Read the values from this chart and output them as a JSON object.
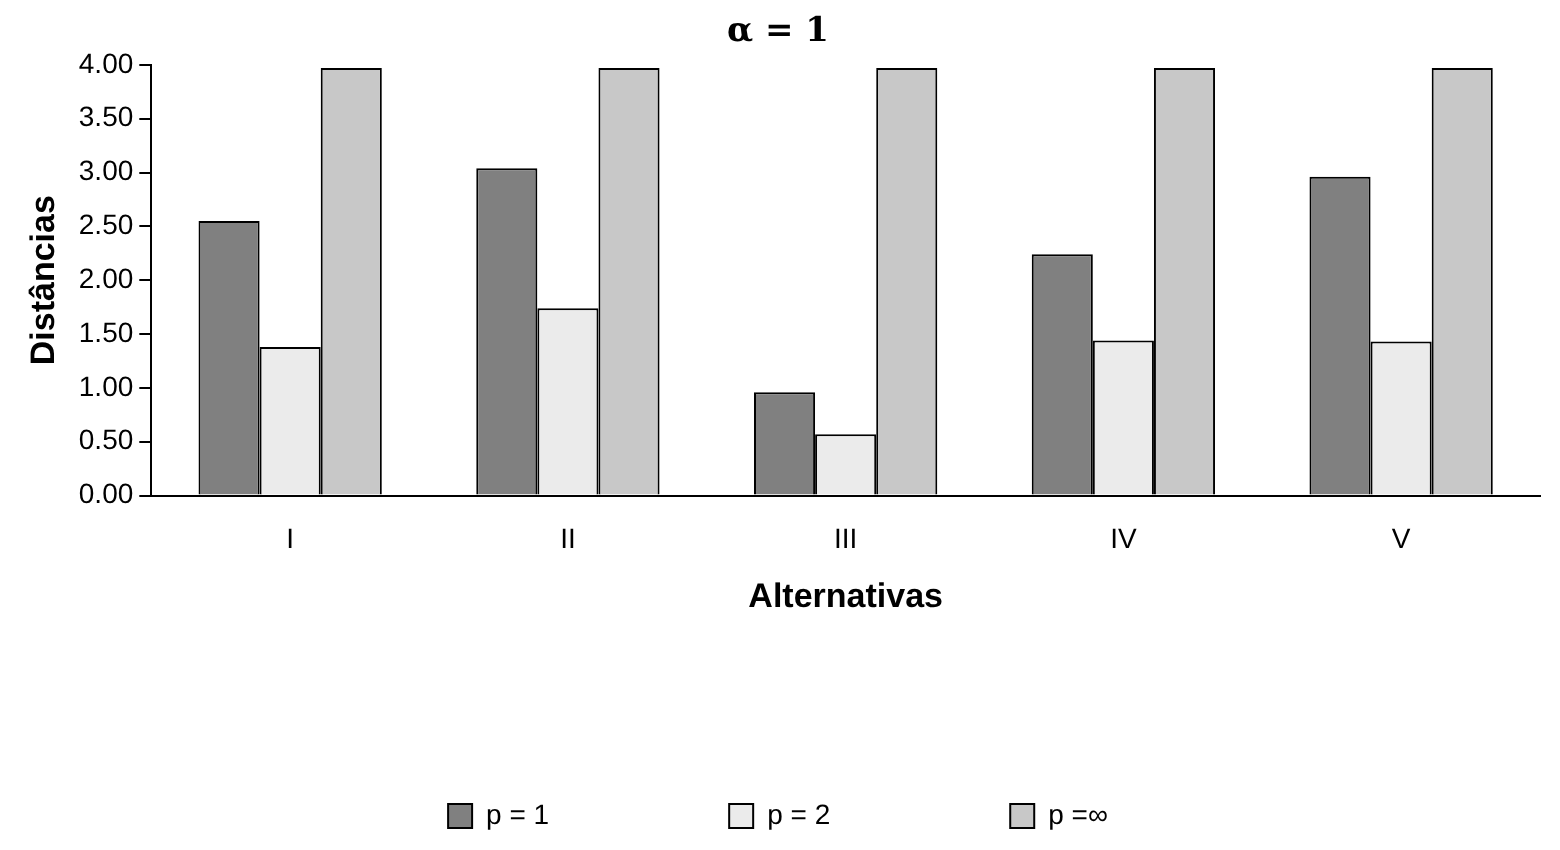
{
  "chart_data": {
    "type": "bar",
    "title": "α = 1",
    "xlabel": "Alternativas",
    "ylabel": "Distâncias",
    "categories": [
      "I",
      "II",
      "III",
      "IV",
      "V"
    ],
    "series": [
      {
        "name": "p = 1",
        "color": "#808080",
        "values": [
          2.55,
          3.04,
          0.96,
          2.24,
          2.96
        ]
      },
      {
        "name": "p = 2",
        "color": "#ebebeb",
        "values": [
          1.38,
          1.74,
          0.57,
          1.44,
          1.43
        ]
      },
      {
        "name": "p =∞",
        "color": "#c8c8c8",
        "values": [
          3.97,
          3.97,
          3.97,
          3.97,
          3.97
        ]
      }
    ],
    "ylim": [
      0,
      4
    ],
    "yticks": [
      {
        "value": 0,
        "label": "0.00"
      },
      {
        "value": 0.5,
        "label": "0.50"
      },
      {
        "value": 1,
        "label": "1.00"
      },
      {
        "value": 1.5,
        "label": "1.50"
      },
      {
        "value": 2,
        "label": "2.00"
      },
      {
        "value": 2.5,
        "label": "2.50"
      },
      {
        "value": 3,
        "label": "3.00"
      },
      {
        "value": 3.5,
        "label": "3.50"
      },
      {
        "value": 4,
        "label": "4.00"
      }
    ],
    "grid": false,
    "legend": "bottom"
  }
}
